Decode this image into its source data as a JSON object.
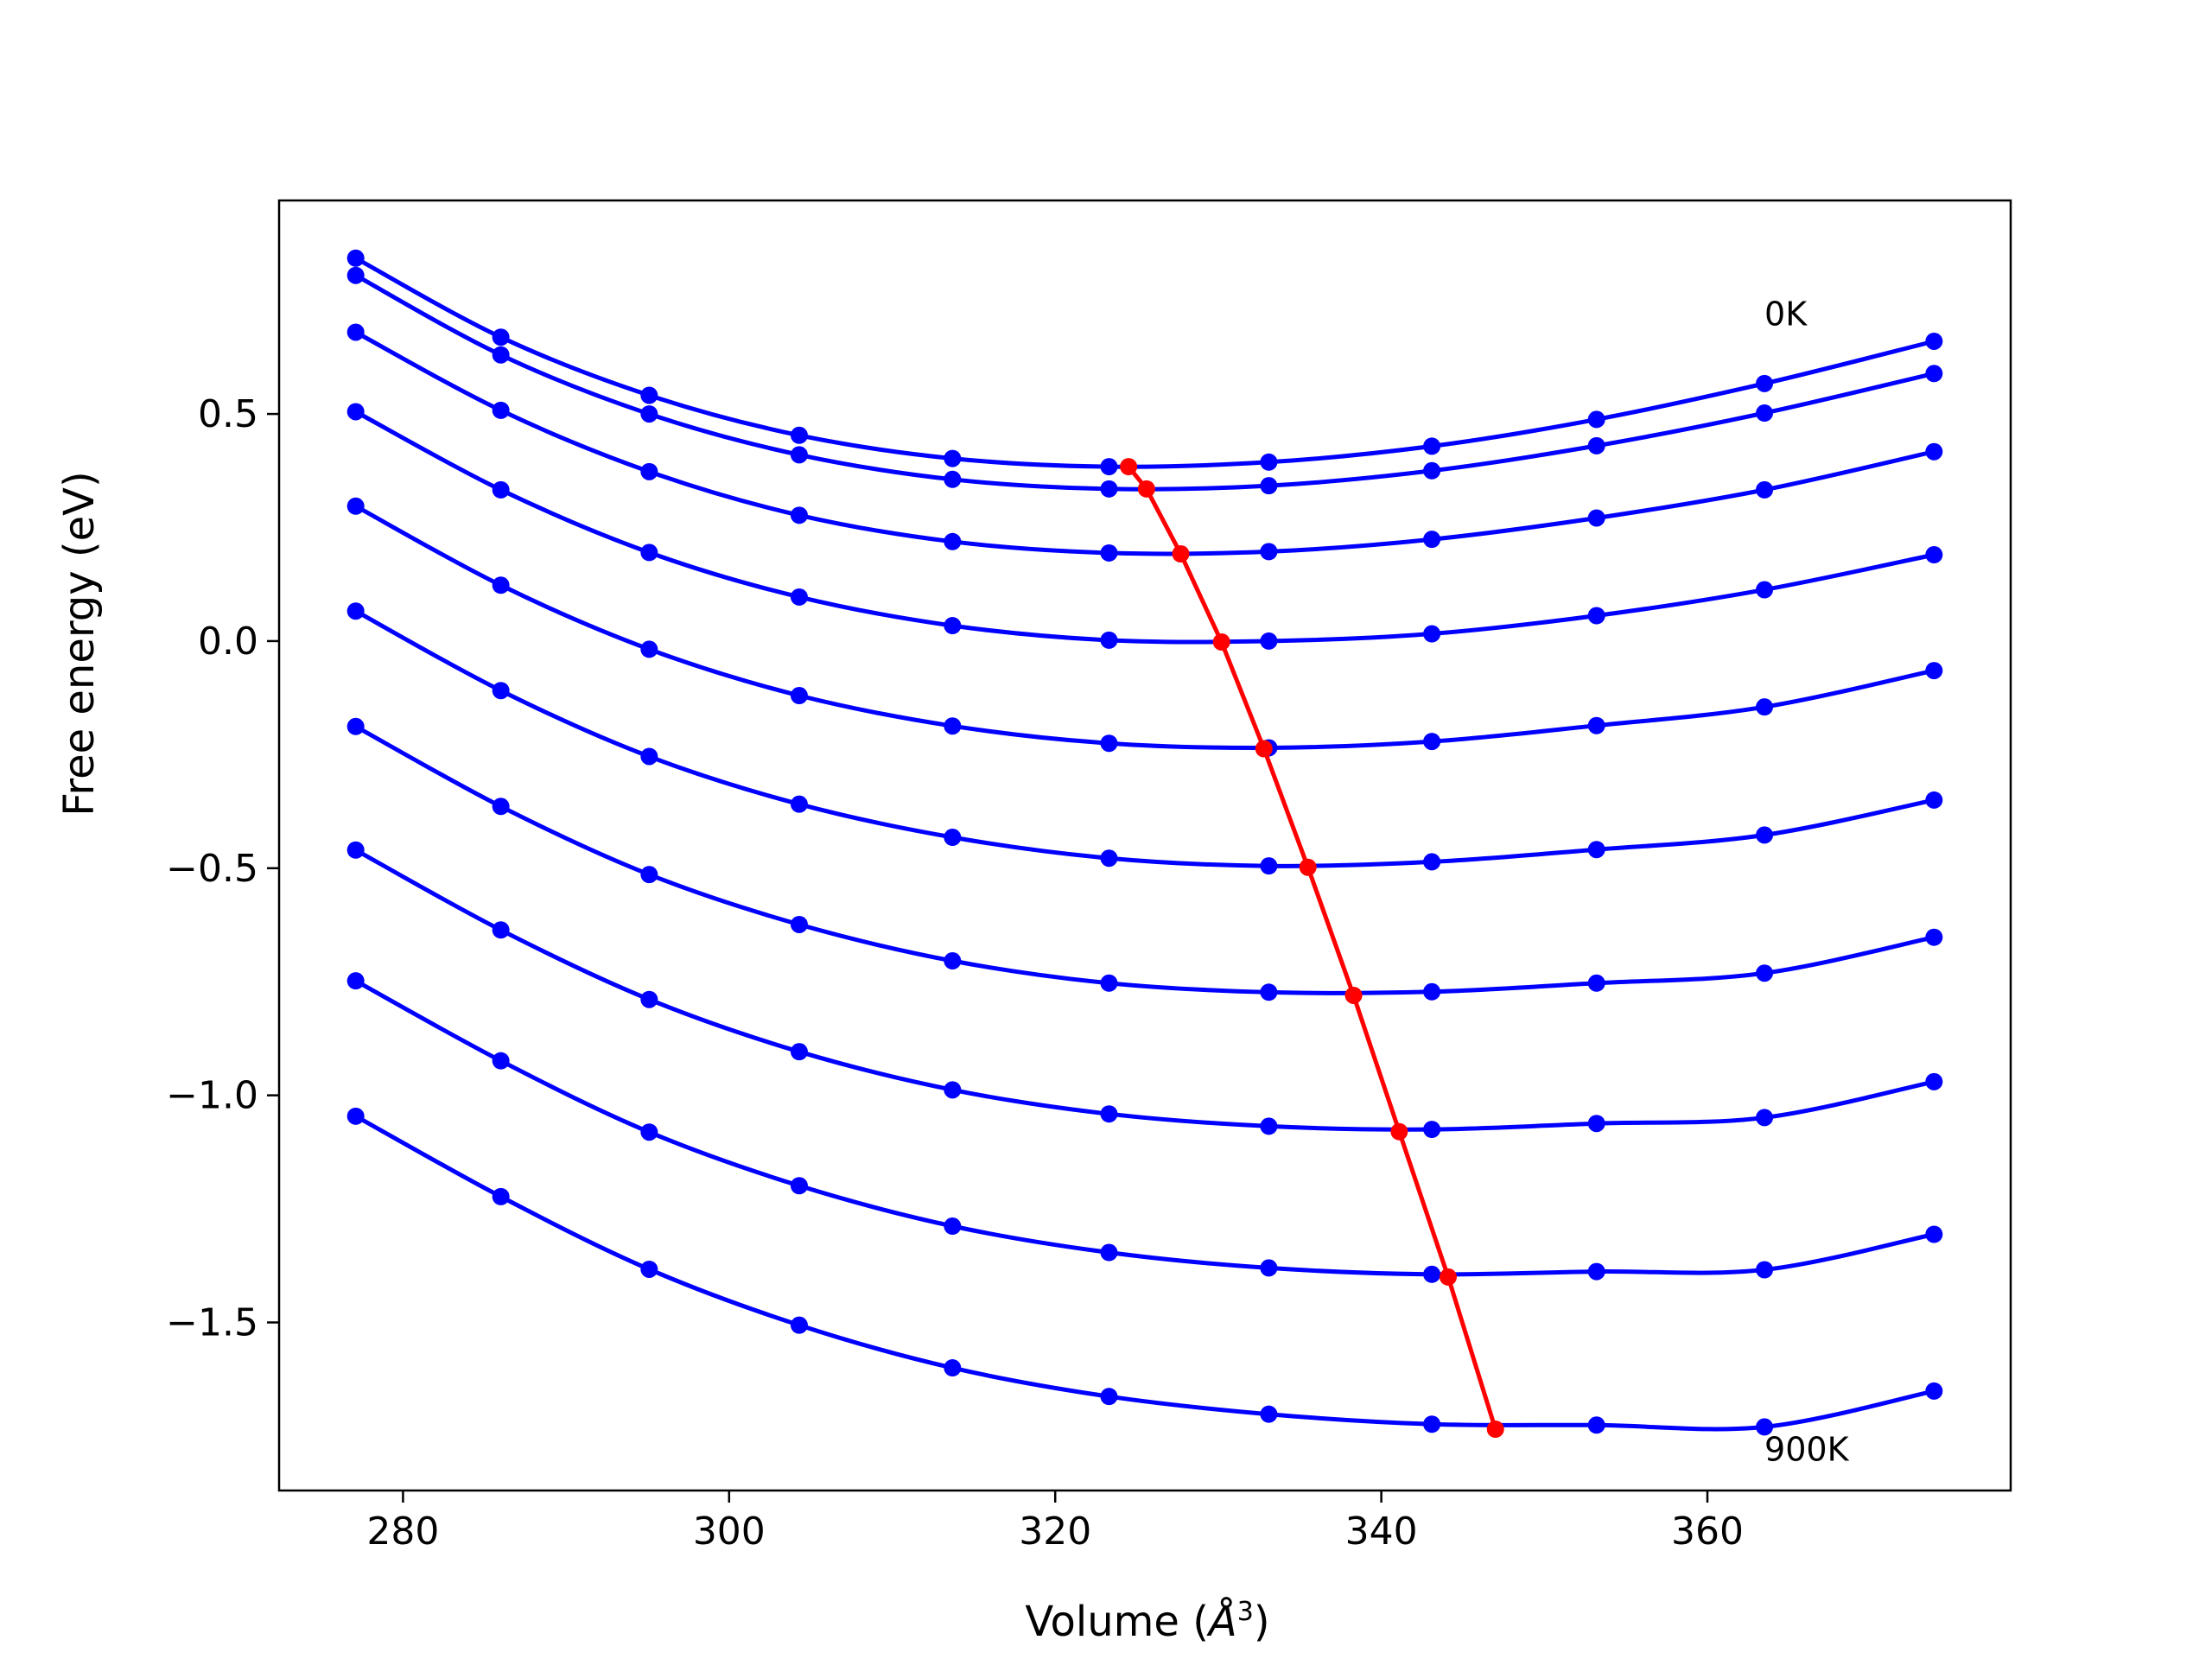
{
  "chart_data": {
    "type": "line",
    "xlabel": "Volume",
    "xlabel_unit": "Å",
    "xlabel_exponent": "3",
    "ylabel": "Free energy (eV)",
    "xlim": [
      272.4,
      378.6
    ],
    "ylim": [
      -1.87,
      0.97
    ],
    "xticks": [
      280,
      300,
      320,
      340,
      360
    ],
    "xtick_labels": [
      "280",
      "300",
      "320",
      "340",
      "360"
    ],
    "yticks": [
      -1.5,
      -1.0,
      -0.5,
      0.0,
      0.5
    ],
    "ytick_labels": [
      "−1.5",
      "−1.0",
      "−0.5",
      "0.0",
      "0.5"
    ],
    "grid": false,
    "curve_labels": [
      {
        "text": "0K",
        "x": 363.5,
        "y": 0.72
      },
      {
        "text": "900K",
        "x": 363.5,
        "y": -1.78
      }
    ],
    "series_color": "#0000ff",
    "minima_color": "#ff0000",
    "x": [
      277.1,
      286.0,
      295.1,
      304.3,
      313.7,
      323.3,
      333.1,
      343.1,
      353.2,
      363.5,
      373.9
    ],
    "series": [
      {
        "values": [
          0.843,
          0.669,
          0.541,
          0.453,
          0.402,
          0.384,
          0.394,
          0.429,
          0.488,
          0.567,
          0.66
        ]
      },
      {
        "values": [
          0.805,
          0.63,
          0.5,
          0.41,
          0.356,
          0.335,
          0.342,
          0.375,
          0.43,
          0.502,
          0.589
        ]
      },
      {
        "values": [
          0.68,
          0.508,
          0.373,
          0.277,
          0.219,
          0.194,
          0.197,
          0.224,
          0.271,
          0.333,
          0.417
        ]
      },
      {
        "values": [
          0.505,
          0.333,
          0.195,
          0.097,
          0.034,
          0.002,
          0.0,
          0.016,
          0.056,
          0.113,
          0.19
        ]
      },
      {
        "values": [
          0.297,
          0.123,
          -0.018,
          -0.12,
          -0.187,
          -0.225,
          -0.235,
          -0.221,
          -0.186,
          -0.145,
          -0.065
        ]
      },
      {
        "values": [
          0.066,
          -0.109,
          -0.254,
          -0.359,
          -0.432,
          -0.478,
          -0.495,
          -0.486,
          -0.459,
          -0.427,
          -0.35
        ]
      },
      {
        "values": [
          -0.188,
          -0.364,
          -0.514,
          -0.624,
          -0.704,
          -0.753,
          -0.773,
          -0.772,
          -0.753,
          -0.731,
          -0.652
        ]
      },
      {
        "values": [
          -0.46,
          -0.636,
          -0.789,
          -0.904,
          -0.988,
          -1.041,
          -1.068,
          -1.075,
          -1.062,
          -1.049,
          -0.97
        ]
      },
      {
        "values": [
          -0.748,
          -0.924,
          -1.081,
          -1.199,
          -1.288,
          -1.346,
          -1.38,
          -1.394,
          -1.388,
          -1.384,
          -1.306
        ]
      },
      {
        "values": [
          -1.046,
          -1.223,
          -1.383,
          -1.506,
          -1.6,
          -1.663,
          -1.702,
          -1.724,
          -1.726,
          -1.73,
          -1.651
        ]
      }
    ],
    "minima": {
      "x": [
        324.5,
        325.6,
        327.7,
        330.2,
        332.8,
        335.5,
        338.3,
        341.1,
        344.1,
        347.0
      ],
      "y": [
        0.384,
        0.335,
        0.192,
        -0.002,
        -0.237,
        -0.498,
        -0.78,
        -1.08,
        -1.4,
        -1.735
      ]
    }
  }
}
